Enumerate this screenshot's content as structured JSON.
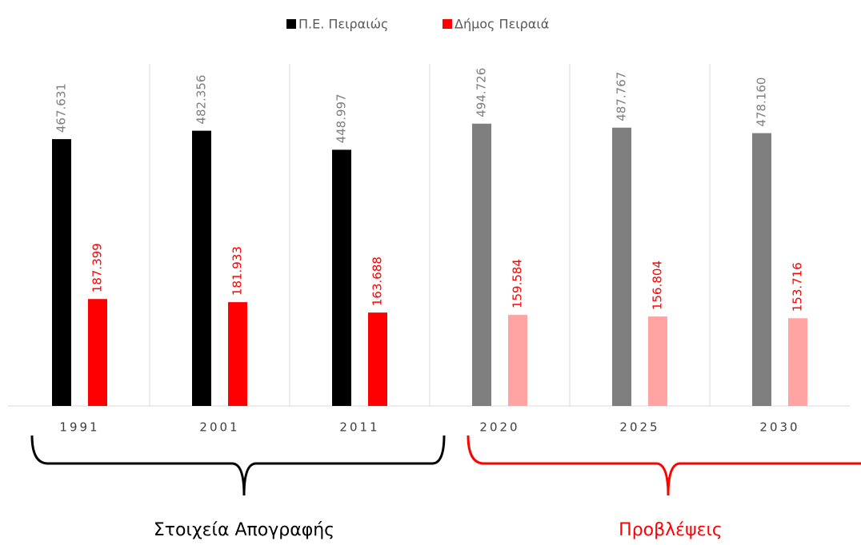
{
  "chart_data": {
    "type": "bar",
    "categories": [
      "1991",
      "2001",
      "2011",
      "2020",
      "2025",
      "2030"
    ],
    "series": [
      {
        "name": "Π.Ε. Πειραιώς",
        "color": "#000000",
        "colors": [
          "#000000",
          "#000000",
          "#000000",
          "#7f7f7f",
          "#7f7f7f",
          "#7f7f7f"
        ],
        "label_color": "#7f7f7f",
        "values": [
          467631,
          482356,
          448997,
          494726,
          487767,
          478160
        ],
        "value_labels": [
          "467.631",
          "482.356",
          "448.997",
          "494.726",
          "487.767",
          "478.160"
        ]
      },
      {
        "name": "Δήμος Πειραιά",
        "color": "#ff0000",
        "colors": [
          "#ff0000",
          "#ff0000",
          "#ff0000",
          "#ffa3a3",
          "#ffa3a3",
          "#ffa3a3"
        ],
        "label_color": "#ff0000",
        "values": [
          187399,
          181933,
          163688,
          159584,
          156804,
          153716
        ],
        "value_labels": [
          "187.399",
          "181.933",
          "163.688",
          "159.584",
          "156.804",
          "153.716"
        ]
      }
    ],
    "legend": "top",
    "annotations": [
      {
        "text": "Στοιχεία Απογραφής",
        "color": "#000000"
      },
      {
        "text": "Προβλέψεις",
        "color": "#ff0000"
      }
    ]
  }
}
